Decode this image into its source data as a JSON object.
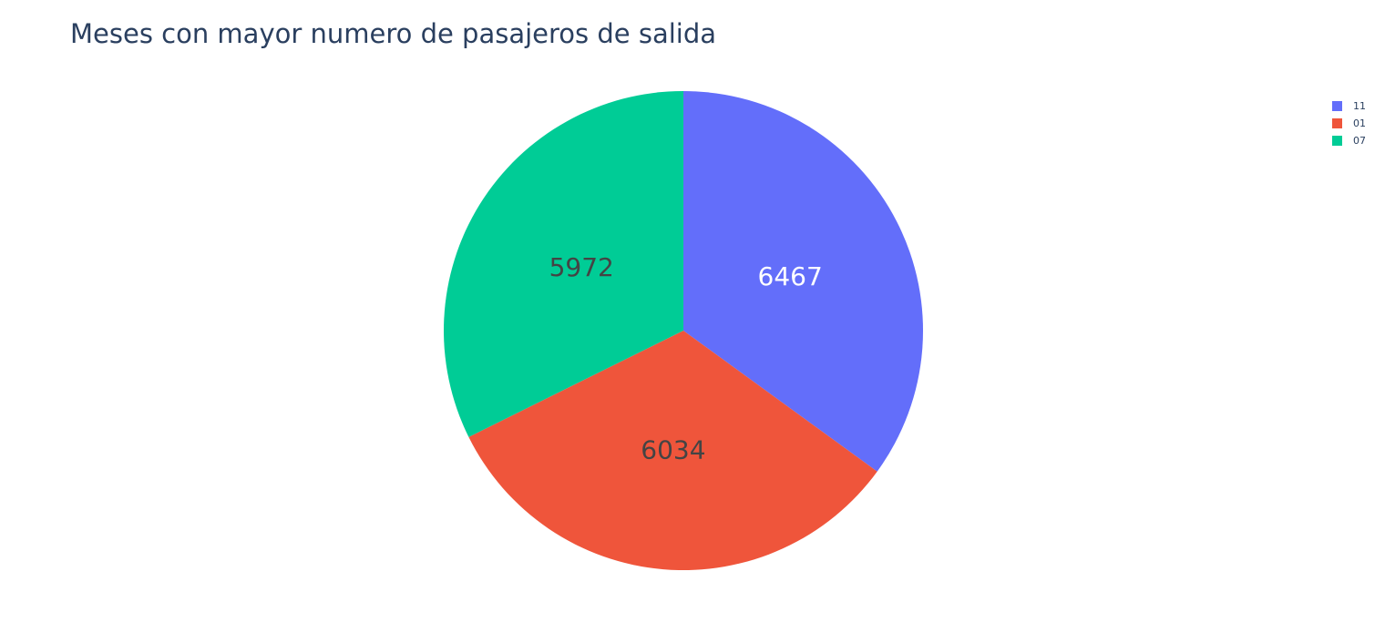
{
  "chart_data": {
    "type": "pie",
    "title": "Meses con mayor numero de pasajeros de salida",
    "labels": [
      "11",
      "01",
      "07"
    ],
    "values": [
      6467,
      6034,
      5972
    ],
    "colors": [
      "#636efa",
      "#EF553B",
      "#00cc96"
    ],
    "text_colors": [
      "#ffffff",
      "#444444",
      "#444444"
    ],
    "legend_position": "top-right",
    "direction": "clockwise",
    "start": "top"
  }
}
